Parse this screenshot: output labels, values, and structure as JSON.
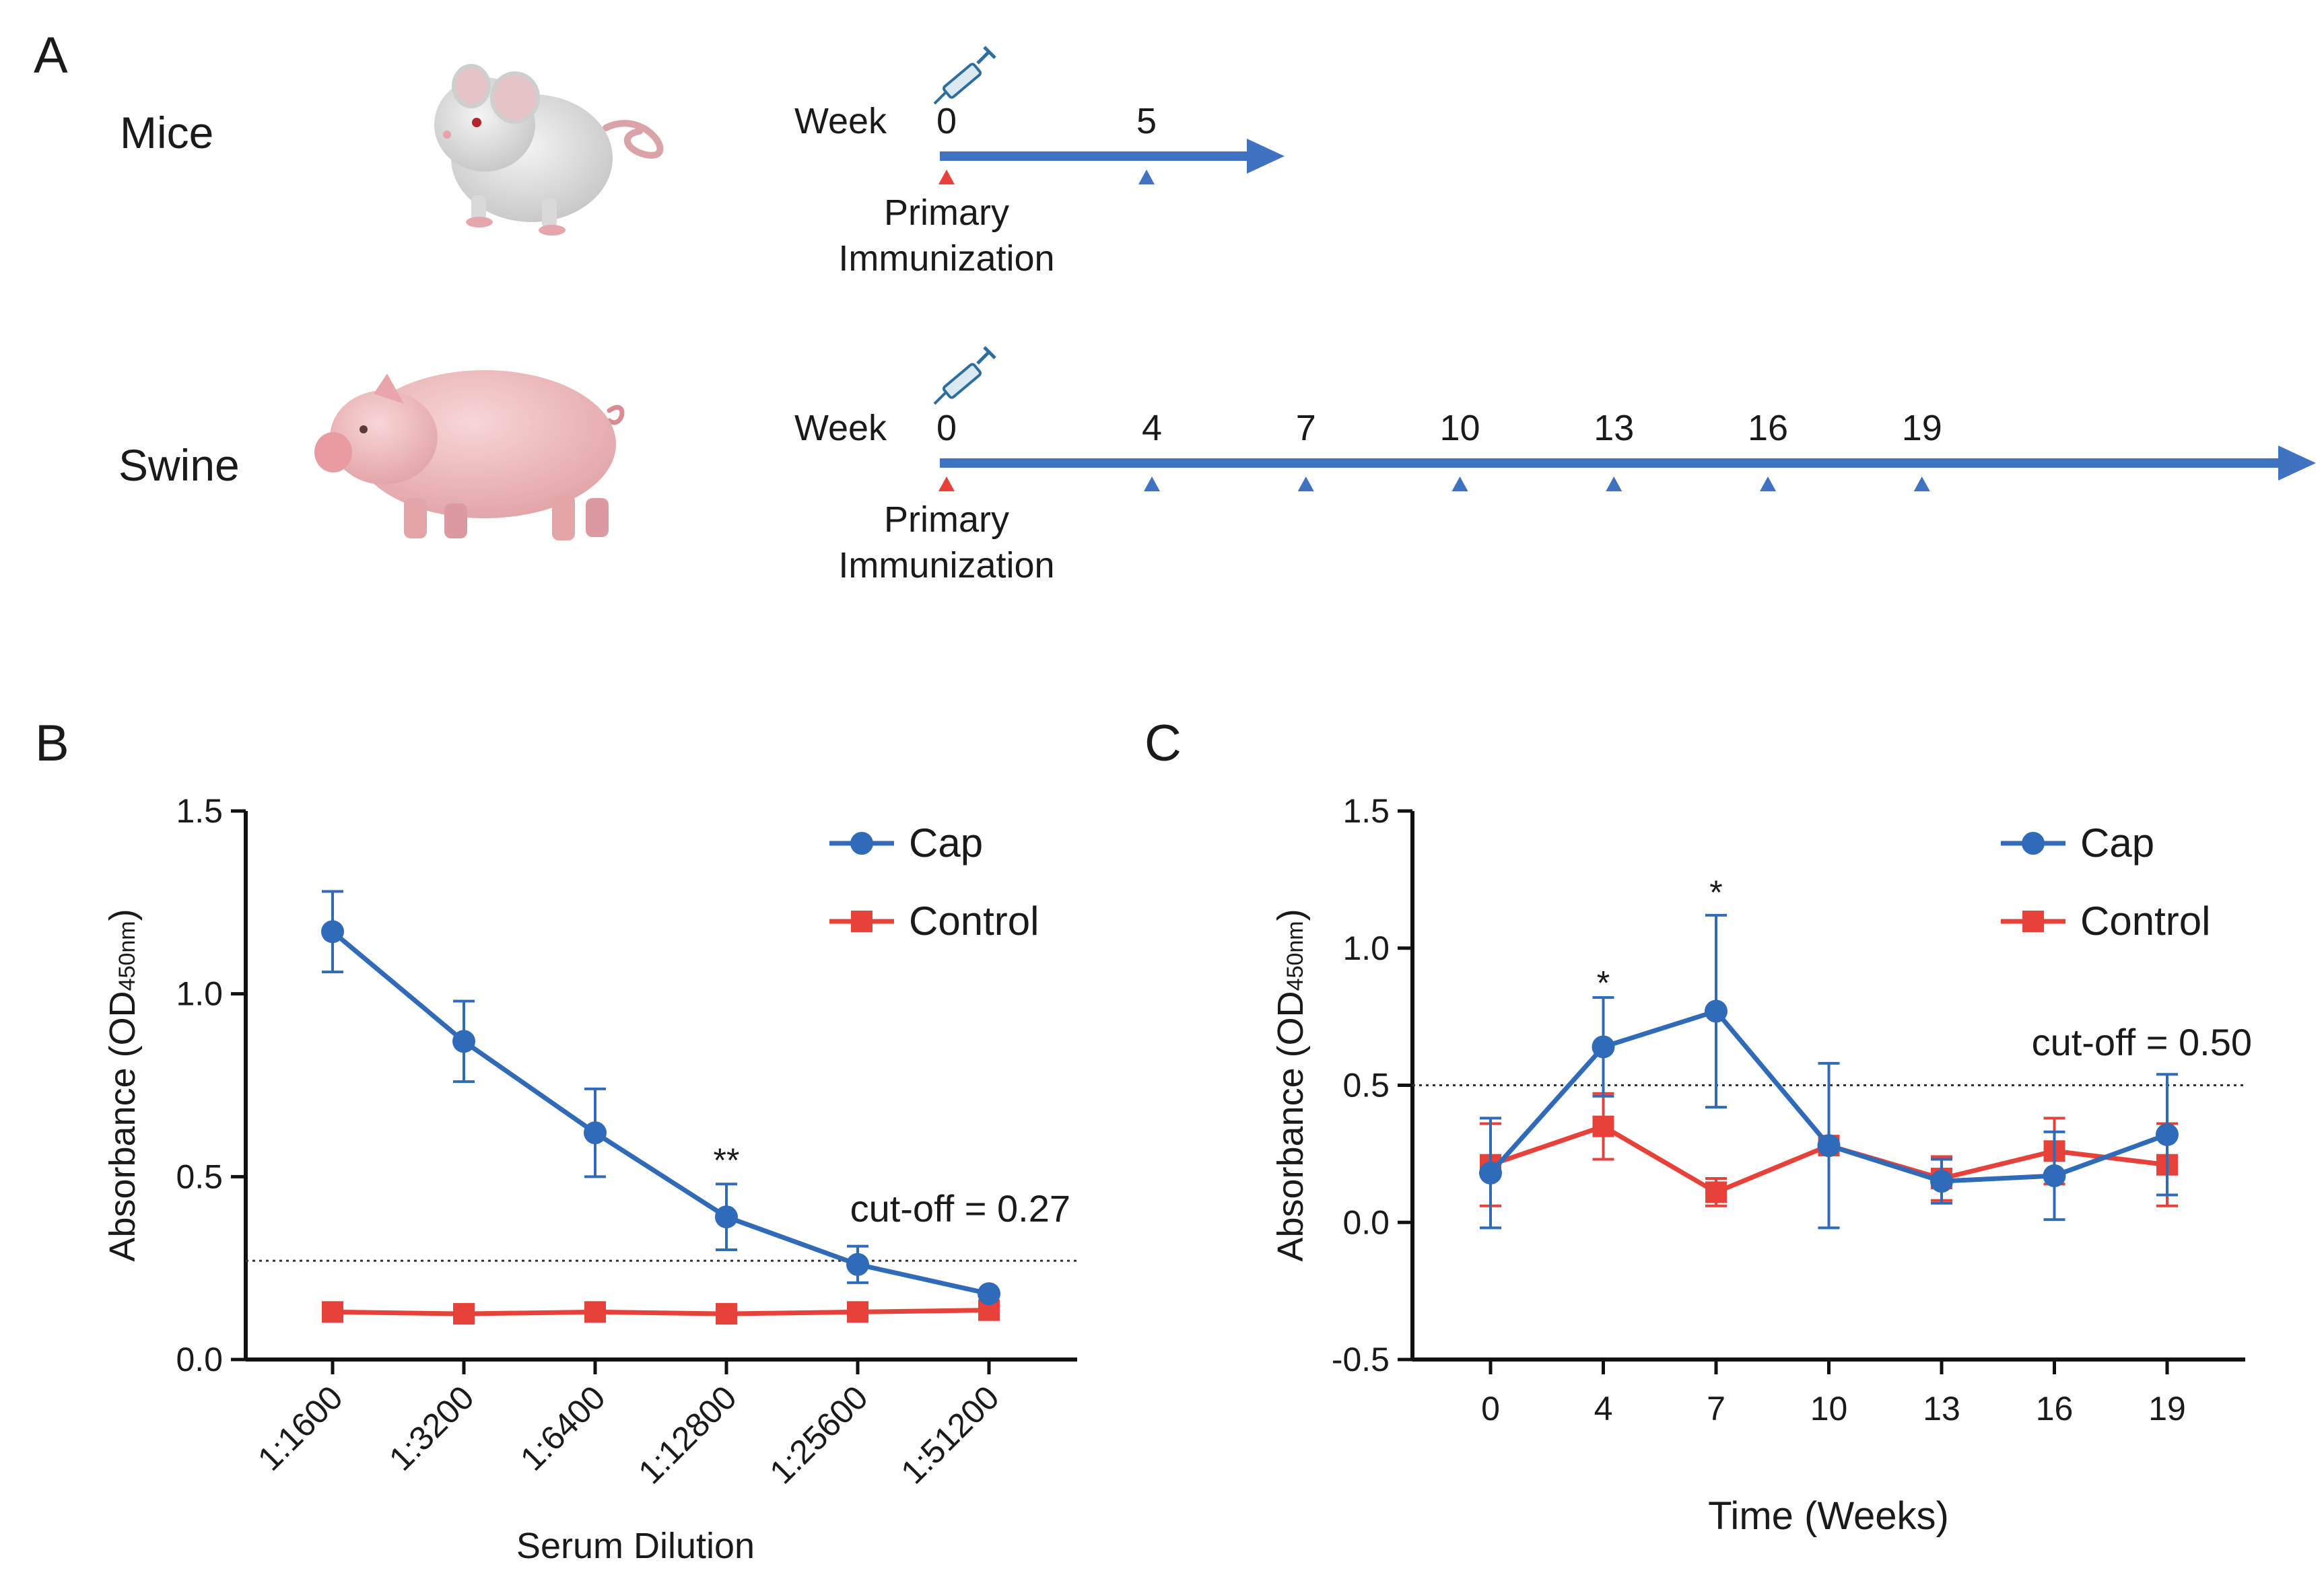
{
  "colors": {
    "cap": "#2f6bb8",
    "control": "#e8413a",
    "timeline": "#3f72c1",
    "primary_marker": "#e8413a",
    "axis": "#111111"
  },
  "panel_a": {
    "letter": "A",
    "rows": [
      {
        "animal_label": "Mice",
        "week_label": "Week",
        "weeks": [
          0,
          5
        ],
        "primary_line1": "Primary",
        "primary_line2": "Immunization",
        "icon": "mouse-illustration"
      },
      {
        "animal_label": "Swine",
        "week_label": "Week",
        "weeks": [
          0,
          4,
          7,
          10,
          13,
          16,
          19
        ],
        "primary_line1": "Primary",
        "primary_line2": "Immunization",
        "icon": "pig-illustration"
      }
    ],
    "syringe_icon": "syringe-icon"
  },
  "chart_data": [
    {
      "panel": "B",
      "type": "line",
      "xlabel": "Serum Dilution",
      "ylabel_main": "Absorbance (OD",
      "ylabel_sub": "450nm",
      "ylabel_end": ")",
      "categories": [
        "1:1600",
        "1:3200",
        "1:6400",
        "1:12800",
        "1:25600",
        "1:51200"
      ],
      "ylim": [
        0,
        1.5
      ],
      "yticks": [
        0.0,
        0.5,
        1.0,
        1.5
      ],
      "ytick_labels": [
        "0.0",
        "0.5",
        "1.0",
        "1.5"
      ],
      "series": [
        {
          "name": "Cap",
          "marker": "circle",
          "values": [
            1.17,
            0.87,
            0.62,
            0.39,
            0.26,
            0.18
          ],
          "errors": [
            0.11,
            0.11,
            0.12,
            0.09,
            0.05,
            0.0
          ]
        },
        {
          "name": "Control",
          "marker": "square",
          "values": [
            0.13,
            0.125,
            0.13,
            0.125,
            0.13,
            0.135
          ],
          "errors": [
            0.0,
            0.0,
            0.0,
            0.0,
            0.0,
            0.0
          ]
        }
      ],
      "cutoff": 0.27,
      "cutoff_label": "cut-off = 0.27",
      "annotations": [
        {
          "text": "**",
          "index": 3,
          "y": 0.55
        }
      ],
      "legend": "top-right"
    },
    {
      "panel": "C",
      "type": "line",
      "xlabel": "Time (Weeks)",
      "ylabel_main": "Absorbance (OD",
      "ylabel_sub": "450nm",
      "ylabel_end": ")",
      "x": [
        0,
        4,
        7,
        10,
        13,
        16,
        19
      ],
      "x_labels": [
        "0",
        "4",
        "7",
        "10",
        "13",
        "16",
        "19"
      ],
      "ylim": [
        -0.5,
        1.5
      ],
      "yticks": [
        -0.5,
        0.0,
        0.5,
        1.0,
        1.5
      ],
      "ytick_labels": [
        "-0.5",
        "0.0",
        "0.5",
        "1.0",
        "1.5"
      ],
      "series": [
        {
          "name": "Cap",
          "marker": "circle",
          "values": [
            0.18,
            0.64,
            0.77,
            0.28,
            0.15,
            0.17,
            0.32
          ],
          "errors": [
            0.2,
            0.18,
            0.35,
            0.3,
            0.08,
            0.16,
            0.22
          ]
        },
        {
          "name": "Control",
          "marker": "square",
          "values": [
            0.21,
            0.35,
            0.11,
            0.28,
            0.16,
            0.26,
            0.21
          ],
          "errors": [
            0.15,
            0.12,
            0.05,
            0.03,
            0.08,
            0.12,
            0.15
          ]
        }
      ],
      "cutoff": 0.5,
      "cutoff_label": "cut-off = 0.50",
      "annotations": [
        {
          "text": "*",
          "index": 1,
          "y": 0.88
        },
        {
          "text": "*",
          "index": 2,
          "y": 1.21
        }
      ],
      "legend": "top-right"
    }
  ]
}
